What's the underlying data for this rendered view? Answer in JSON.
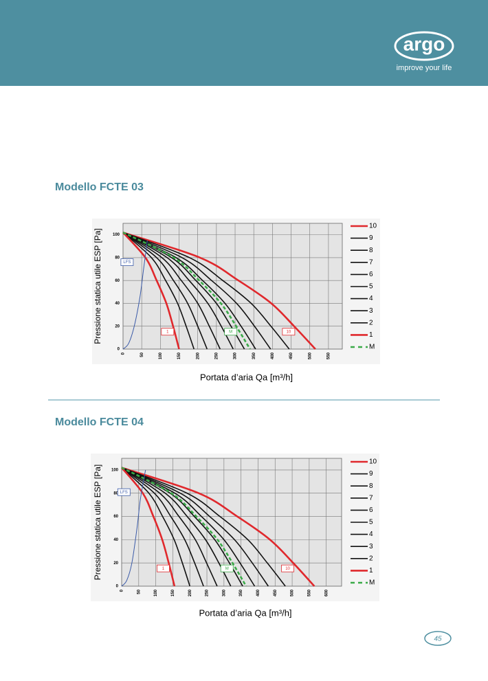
{
  "header": {
    "logo": "argo",
    "tagline": "improve your life"
  },
  "chart_data": [
    {
      "type": "line",
      "title": "Modello FCTE 03",
      "x_label": "Portata d’aria Qa [m³/h]",
      "y_label": "Pressione statica utile ESP [Pa]",
      "xlim": [
        0,
        587
      ],
      "xticks": [
        0,
        50,
        100,
        150,
        200,
        250,
        300,
        350,
        400,
        450,
        500,
        550
      ],
      "ylim": [
        0,
        110
      ],
      "yticks": [
        0,
        20,
        40,
        60,
        80,
        100
      ],
      "grid": true,
      "legend": "right",
      "series": [
        {
          "name": "10",
          "color": "#e0282c",
          "boxed_label": true,
          "x": [
            0,
            206,
            309,
            397,
            458,
            515
          ],
          "values": [
            102,
            80,
            60,
            40,
            20,
            0
          ]
        },
        {
          "name": "9",
          "color": "#111111",
          "x": [
            0,
            178,
            267,
            343,
            396,
            445
          ],
          "values": [
            102,
            80,
            60,
            40,
            20,
            0
          ]
        },
        {
          "name": "8",
          "color": "#111111",
          "x": [
            0,
            158,
            237,
            304,
            352,
            395
          ],
          "values": [
            102,
            80,
            60,
            40,
            20,
            0
          ]
        },
        {
          "name": "7",
          "color": "#111111",
          "x": [
            0,
            142,
            213,
            273,
            316,
            355
          ],
          "values": [
            102,
            80,
            60,
            40,
            20,
            0
          ]
        },
        {
          "name": "6",
          "color": "#111111",
          "x": [
            0,
            130,
            195,
            250,
            289,
            325
          ],
          "values": [
            102,
            80,
            60,
            40,
            20,
            0
          ]
        },
        {
          "name": "5",
          "color": "#111111",
          "x": [
            0,
            118,
            177,
            227,
            263,
            295
          ],
          "values": [
            102,
            80,
            60,
            40,
            20,
            0
          ]
        },
        {
          "name": "4",
          "color": "#111111",
          "x": [
            0,
            104,
            156,
            200,
            231,
            260
          ],
          "values": [
            102,
            80,
            60,
            40,
            20,
            0
          ]
        },
        {
          "name": "3",
          "color": "#111111",
          "x": [
            0,
            90,
            135,
            173,
            200,
            225
          ],
          "values": [
            102,
            80,
            60,
            40,
            20,
            0
          ]
        },
        {
          "name": "2",
          "color": "#111111",
          "x": [
            0,
            76,
            114,
            146,
            169,
            190
          ],
          "values": [
            102,
            80,
            60,
            40,
            20,
            0
          ]
        },
        {
          "name": "1",
          "color": "#e0282c",
          "boxed_label": true,
          "x": [
            0,
            60,
            90,
            116,
            134,
            150
          ],
          "values": [
            102,
            80,
            60,
            40,
            20,
            0
          ]
        },
        {
          "name": "M",
          "color": "#3aaa48",
          "dashed": true,
          "boxed_label": true,
          "x": [
            0,
            136,
            204,
            262,
            303,
            340
          ],
          "values": [
            102,
            80,
            60,
            40,
            20,
            0
          ]
        },
        {
          "name": "LFS",
          "color": "#3a5aa8",
          "in_legend": false,
          "boxed_label": true,
          "x": [
            0,
            15,
            30,
            45,
            55,
            65
          ],
          "values": [
            0,
            5,
            20,
            45,
            70,
            95
          ]
        }
      ]
    },
    {
      "type": "line",
      "title": "Modello FCTE 04",
      "x_label": "Portata d’aria Qa [m³/h]",
      "y_label": "Pressione statica utile ESP [Pa]",
      "xlim": [
        0,
        645
      ],
      "xticks": [
        0,
        50,
        100,
        150,
        200,
        250,
        300,
        350,
        400,
        450,
        500,
        550,
        600
      ],
      "ylim": [
        0,
        110
      ],
      "yticks": [
        0,
        20,
        40,
        60,
        80,
        100
      ],
      "grid": true,
      "legend": "right",
      "series": [
        {
          "name": "10",
          "color": "#e0282c",
          "boxed_label": true,
          "x": [
            0,
            226,
            339,
            435,
            503,
            565
          ],
          "values": [
            102,
            80,
            60,
            40,
            20,
            0
          ]
        },
        {
          "name": "9",
          "color": "#111111",
          "x": [
            0,
            192,
            288,
            370,
            427,
            480
          ],
          "values": [
            102,
            80,
            60,
            40,
            20,
            0
          ]
        },
        {
          "name": "8",
          "color": "#111111",
          "x": [
            0,
            172,
            258,
            331,
            383,
            430
          ],
          "values": [
            102,
            80,
            60,
            40,
            20,
            0
          ]
        },
        {
          "name": "7",
          "color": "#111111",
          "x": [
            0,
            156,
            234,
            300,
            347,
            390
          ],
          "values": [
            102,
            80,
            60,
            40,
            20,
            0
          ]
        },
        {
          "name": "6",
          "color": "#111111",
          "x": [
            0,
            142,
            213,
            273,
            316,
            355
          ],
          "values": [
            102,
            80,
            60,
            40,
            20,
            0
          ]
        },
        {
          "name": "5",
          "color": "#111111",
          "x": [
            0,
            128,
            192,
            246,
            285,
            320
          ],
          "values": [
            102,
            80,
            60,
            40,
            20,
            0
          ]
        },
        {
          "name": "4",
          "color": "#111111",
          "x": [
            0,
            112,
            168,
            216,
            249,
            280
          ],
          "values": [
            102,
            80,
            60,
            40,
            20,
            0
          ]
        },
        {
          "name": "3",
          "color": "#111111",
          "x": [
            0,
            96,
            144,
            185,
            214,
            240
          ],
          "values": [
            102,
            80,
            60,
            40,
            20,
            0
          ]
        },
        {
          "name": "2",
          "color": "#111111",
          "x": [
            0,
            80,
            120,
            154,
            178,
            200
          ],
          "values": [
            102,
            80,
            60,
            40,
            20,
            0
          ]
        },
        {
          "name": "1",
          "color": "#e0282c",
          "boxed_label": true,
          "x": [
            0,
            62,
            93,
            119,
            138,
            155
          ],
          "values": [
            102,
            80,
            60,
            40,
            20,
            0
          ]
        },
        {
          "name": "M",
          "color": "#3aaa48",
          "dashed": true,
          "boxed_label": true,
          "x": [
            0,
            146,
            219,
            281,
            325,
            365
          ],
          "values": [
            102,
            80,
            60,
            40,
            20,
            0
          ]
        },
        {
          "name": "LFS",
          "color": "#3a5aa8",
          "in_legend": false,
          "boxed_label": true,
          "x": [
            0,
            15,
            30,
            45,
            55,
            70
          ],
          "values": [
            0,
            5,
            20,
            50,
            75,
            100
          ]
        }
      ]
    }
  ],
  "page_number": "45"
}
